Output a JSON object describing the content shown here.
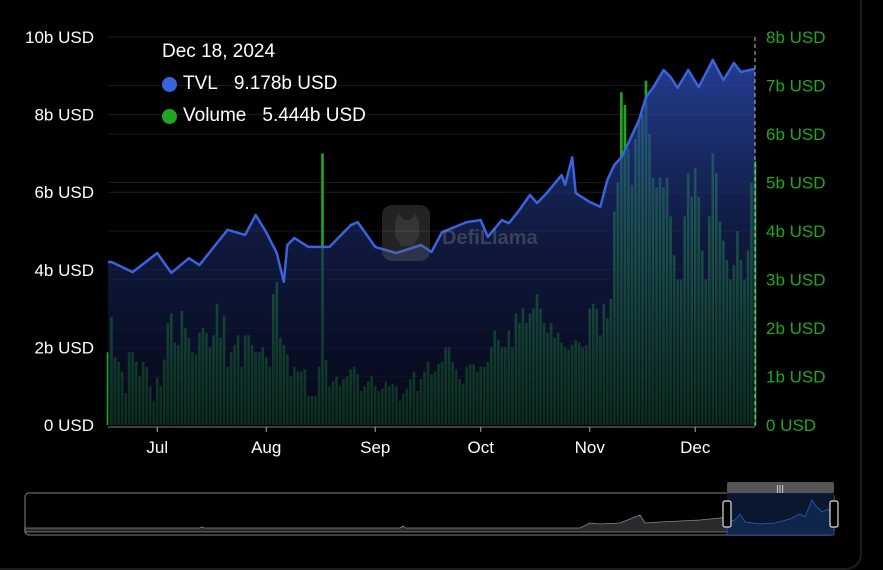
{
  "tooltip": {
    "date": "Dec 18, 2024",
    "items": [
      {
        "label": "TVL",
        "value": "9.178b USD",
        "color": "#3a63e0"
      },
      {
        "label": "Volume",
        "value": "5.444b USD",
        "color": "#1fa81f"
      }
    ]
  },
  "watermark": {
    "text": "DefiLlama"
  },
  "chart_data": {
    "type": "bar+area",
    "x_range": [
      "2024-06-17",
      "2024-12-18"
    ],
    "x_ticks": [
      {
        "label": "Jul",
        "date": "2024-07-01"
      },
      {
        "label": "Aug",
        "date": "2024-08-01"
      },
      {
        "label": "Sep",
        "date": "2024-09-01"
      },
      {
        "label": "Oct",
        "date": "2024-10-01"
      },
      {
        "label": "Nov",
        "date": "2024-11-01"
      },
      {
        "label": "Dec",
        "date": "2024-12-01"
      }
    ],
    "y_left": {
      "ylim": [
        0,
        10
      ],
      "ticks": [
        0,
        2,
        4,
        6,
        8,
        10
      ],
      "tick_labels": [
        "0 USD",
        "2b USD",
        "4b USD",
        "6b USD",
        "8b USD",
        "10b USD"
      ],
      "color": "#ffffff"
    },
    "y_right": {
      "ylim": [
        0,
        8
      ],
      "ticks": [
        0,
        1,
        2,
        3,
        4,
        5,
        6,
        7,
        8
      ],
      "tick_labels": [
        "0 USD",
        "1b USD",
        "2b USD",
        "3b USD",
        "4b USD",
        "5b USD",
        "6b USD",
        "7b USD",
        "8b USD"
      ],
      "color": "#1fa81f"
    },
    "grid": true,
    "series": [
      {
        "name": "TVL",
        "type": "area",
        "axis": "left",
        "unit": "b USD",
        "color": "#3a63e0",
        "points": [
          [
            "2024-06-18",
            4.2
          ],
          [
            "2024-06-24",
            3.94
          ],
          [
            "2024-07-01",
            4.43
          ],
          [
            "2024-07-05",
            3.92
          ],
          [
            "2024-07-10",
            4.3
          ],
          [
            "2024-07-13",
            4.12
          ],
          [
            "2024-07-18",
            4.69
          ],
          [
            "2024-07-21",
            5.03
          ],
          [
            "2024-07-26",
            4.9
          ],
          [
            "2024-07-29",
            5.41
          ],
          [
            "2024-08-01",
            4.97
          ],
          [
            "2024-08-04",
            4.43
          ],
          [
            "2024-08-06",
            3.69
          ],
          [
            "2024-08-07",
            4.64
          ],
          [
            "2024-08-09",
            4.82
          ],
          [
            "2024-08-13",
            4.59
          ],
          [
            "2024-08-19",
            4.59
          ],
          [
            "2024-08-25",
            5.15
          ],
          [
            "2024-08-27",
            5.23
          ],
          [
            "2024-09-01",
            4.59
          ],
          [
            "2024-09-07",
            4.43
          ],
          [
            "2024-09-14",
            4.64
          ],
          [
            "2024-09-17",
            4.46
          ],
          [
            "2024-09-20",
            4.97
          ],
          [
            "2024-09-27",
            5.23
          ],
          [
            "2024-10-01",
            5.28
          ],
          [
            "2024-10-03",
            4.85
          ],
          [
            "2024-10-07",
            5.28
          ],
          [
            "2024-10-09",
            5.2
          ],
          [
            "2024-10-12",
            5.54
          ],
          [
            "2024-10-15",
            5.93
          ],
          [
            "2024-10-17",
            5.72
          ],
          [
            "2024-10-20",
            6.0
          ],
          [
            "2024-10-24",
            6.44
          ],
          [
            "2024-10-25",
            6.19
          ],
          [
            "2024-10-27",
            6.9
          ],
          [
            "2024-10-28",
            5.98
          ],
          [
            "2024-11-01",
            5.75
          ],
          [
            "2024-11-04",
            5.62
          ],
          [
            "2024-11-06",
            6.31
          ],
          [
            "2024-11-08",
            6.7
          ],
          [
            "2024-11-10",
            6.9
          ],
          [
            "2024-11-12",
            7.27
          ],
          [
            "2024-11-15",
            7.86
          ],
          [
            "2024-11-17",
            8.45
          ],
          [
            "2024-11-19",
            8.69
          ],
          [
            "2024-11-22",
            9.15
          ],
          [
            "2024-11-24",
            8.97
          ],
          [
            "2024-11-26",
            8.69
          ],
          [
            "2024-11-29",
            9.15
          ],
          [
            "2024-12-02",
            8.71
          ],
          [
            "2024-12-06",
            9.41
          ],
          [
            "2024-12-09",
            8.89
          ],
          [
            "2024-12-12",
            9.33
          ],
          [
            "2024-12-14",
            9.1
          ],
          [
            "2024-12-18",
            9.178
          ]
        ]
      },
      {
        "name": "Volume",
        "type": "bar",
        "axis": "right",
        "unit": "b USD",
        "color": "#1fa81f",
        "interval": "daily",
        "values": [
          1.5,
          2.23,
          1.4,
          1.3,
          1.1,
          0.66,
          1.5,
          1.5,
          1.3,
          1.0,
          1.3,
          1.2,
          0.8,
          0.5,
          0.98,
          0.8,
          1.35,
          2.1,
          2.3,
          1.7,
          1.65,
          2.35,
          2.0,
          1.8,
          1.5,
          1.45,
          1.9,
          2.0,
          1.9,
          1.6,
          1.85,
          2.5,
          1.8,
          2.25,
          1.2,
          1.5,
          1.65,
          1.85,
          1.2,
          1.85,
          1.85,
          1.65,
          1.5,
          1.5,
          1.6,
          1.4,
          1.2,
          2.7,
          2.95,
          1.8,
          1.65,
          1.45,
          1.0,
          1.2,
          1.1,
          1.1,
          1.15,
          0.6,
          0.6,
          0.6,
          1.2,
          5.6,
          1.34,
          0.8,
          0.9,
          1.0,
          0.8,
          0.95,
          1.0,
          1.15,
          1.2,
          1.05,
          0.7,
          0.8,
          0.9,
          1.0,
          0.8,
          0.7,
          0.75,
          0.9,
          0.8,
          0.85,
          0.8,
          0.5,
          0.65,
          0.75,
          0.95,
          1.1,
          0.7,
          0.95,
          1.1,
          1.3,
          1.05,
          1.1,
          1.25,
          1.3,
          1.6,
          1.6,
          1.3,
          1.15,
          0.95,
          0.85,
          1.2,
          1.25,
          1.25,
          1.1,
          1.2,
          1.2,
          1.3,
          1.6,
          1.95,
          1.75,
          1.6,
          1.6,
          1.95,
          1.6,
          2.3,
          2.1,
          2.4,
          2.1,
          2.3,
          2.4,
          2.7,
          2.4,
          2.1,
          1.9,
          2.1,
          1.8,
          1.9,
          1.7,
          1.6,
          1.55,
          1.65,
          1.75,
          1.7,
          1.6,
          1.65,
          2.4,
          2.5,
          2.4,
          1.85,
          2.5,
          2.2,
          2.6,
          4.4,
          5.0,
          6.86,
          6.6,
          5.7,
          4.95,
          5.9,
          6.3,
          6.4,
          7.1,
          6.0,
          5.1,
          4.9,
          5.1,
          4.9,
          5.1,
          4.3,
          3.5,
          3.0,
          3.0,
          4.3,
          5.2,
          4.7,
          5.3,
          4.7,
          3.6,
          3.0,
          4.3,
          5.6,
          5.2,
          4.2,
          3.8,
          3.4,
          3.0,
          3.3,
          4.0,
          3.4,
          3.0,
          3.6,
          5.0,
          5.444
        ]
      }
    ],
    "legend": "tooltip top-left"
  },
  "range_selector": {
    "selected_fraction": [
      0.867,
      1.0
    ]
  }
}
